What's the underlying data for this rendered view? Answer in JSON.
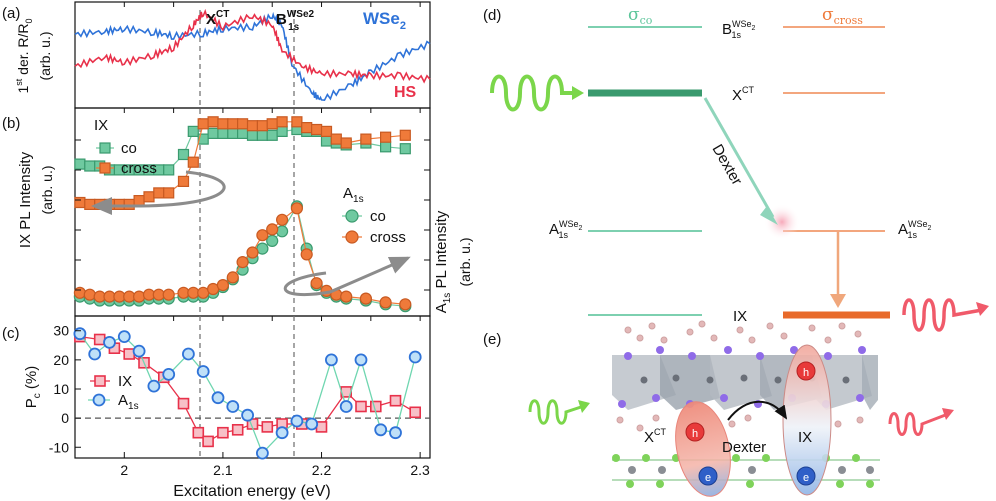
{
  "panels": {
    "a": {
      "label": "(a)",
      "ylabel_main": "1st der. R/R0",
      "ylabel_unit": "(arb. u.)",
      "annot_xct": "X",
      "annot_xct_sup": "CT",
      "annot_b": "B",
      "annot_b_sup": "WSe2",
      "annot_b_sub": "1s",
      "legend_wse2": "WSe2",
      "legend_hs": "HS"
    },
    "b": {
      "label": "(b)",
      "ylabel": "IX PL Intensity",
      "ylabel_unit": "(arb. u.)",
      "ix_title": "IX",
      "ix_co": "co",
      "ix_cross": "cross",
      "a1s_title": "A",
      "a1s_sub": "1s",
      "a1s_co": "co",
      "a1s_cross": "cross",
      "right_ylabel": "A1s PL Intensity",
      "right_ylabel_unit": "(arb. u.)"
    },
    "c": {
      "label": "(c)",
      "ylabel": "P",
      "ylabel_sub": "c",
      "ylabel_unit": "(%)",
      "legend_ix": "IX",
      "legend_a1s": "A",
      "legend_a1s_sub": "1s",
      "xlabel": "Excitation energy (eV)",
      "xticks": [
        "2",
        "2.1",
        "2.2",
        "2.3"
      ],
      "yticks": [
        "30",
        "20",
        "10",
        "0",
        "-10"
      ]
    },
    "d": {
      "label": "(d)",
      "sigma_co": "σ",
      "sigma_co_sub": "co",
      "sigma_cross": "σ",
      "sigma_cross_sub": "cross",
      "level_b": "B",
      "level_b_sup": "WSe",
      "level_b_sup2": "2",
      "level_b_sub": "1s",
      "level_xct": "X",
      "level_xct_sup": "CT",
      "level_a_left": "A",
      "level_a_sup": "WSe",
      "level_a_sup2": "2",
      "level_a_sub": "1s",
      "level_a_right": "A",
      "level_ix": "IX",
      "dexter": "Dexter"
    },
    "e": {
      "label": "(e)",
      "xct": "X",
      "xct_sup": "CT",
      "dexter": "Dexter",
      "ix": "IX",
      "h": "h",
      "e": "e"
    }
  },
  "colors": {
    "red": "#e8314a",
    "blue": "#2f73d8",
    "green": "#6fc9a0",
    "orange": "#ef7a3a",
    "teal": "#3a9a6e",
    "gray": "#8c8c8c"
  },
  "chart_data": [
    {
      "type": "line",
      "panel": "a",
      "x_range": [
        1.95,
        2.31
      ],
      "series": [
        {
          "name": "WSe2",
          "x": [
            1.95,
            1.98,
            2.0,
            2.03,
            2.05,
            2.08,
            2.1,
            2.13,
            2.15,
            2.16,
            2.17,
            2.19,
            2.2,
            2.23,
            2.25,
            2.28,
            2.31
          ],
          "y": [
            0.72,
            0.75,
            0.78,
            0.74,
            0.7,
            0.73,
            0.78,
            0.8,
            0.92,
            0.82,
            0.4,
            0.1,
            0.02,
            0.18,
            0.32,
            0.5,
            0.62
          ]
        },
        {
          "name": "HS",
          "x": [
            1.95,
            1.98,
            2.0,
            2.03,
            2.05,
            2.07,
            2.08,
            2.1,
            2.13,
            2.15,
            2.16,
            2.18,
            2.2,
            2.23,
            2.25,
            2.28,
            2.31
          ],
          "y": [
            0.38,
            0.48,
            0.42,
            0.5,
            0.58,
            0.82,
            0.95,
            0.8,
            0.92,
            0.82,
            0.55,
            0.38,
            0.3,
            0.3,
            0.28,
            0.28,
            0.24
          ]
        }
      ]
    },
    {
      "type": "scatter",
      "panel": "b",
      "x": [
        1.955,
        1.965,
        1.975,
        1.985,
        1.995,
        2.005,
        2.015,
        2.025,
        2.035,
        2.045,
        2.06,
        2.07,
        2.08,
        2.09,
        2.1,
        2.11,
        2.12,
        2.13,
        2.14,
        2.15,
        2.16,
        2.175,
        2.185,
        2.195,
        2.205,
        2.215,
        2.225,
        2.245,
        2.265,
        2.285
      ],
      "series": [
        {
          "name": "co",
          "group": "IX",
          "values": [
            0.77,
            0.76,
            0.76,
            0.74,
            0.74,
            0.74,
            0.74,
            0.74,
            0.74,
            0.74,
            0.82,
            0.94,
            0.9,
            0.93,
            0.93,
            0.93,
            0.93,
            0.92,
            0.92,
            0.92,
            0.94,
            0.95,
            0.94,
            0.94,
            0.89,
            0.88,
            0.87,
            0.88,
            0.86,
            0.85
          ]
        },
        {
          "name": "cross",
          "group": "IX",
          "values": [
            0.57,
            0.56,
            0.56,
            0.56,
            0.56,
            0.56,
            0.58,
            0.6,
            0.62,
            0.62,
            0.68,
            0.78,
            0.98,
            0.99,
            0.98,
            0.98,
            0.98,
            0.97,
            0.97,
            0.98,
            0.99,
            0.99,
            0.96,
            0.95,
            0.94,
            0.9,
            0.88,
            0.9,
            0.91,
            0.92
          ]
        },
        {
          "name": "co",
          "group": "A1s",
          "values": [
            0.08,
            0.07,
            0.06,
            0.06,
            0.06,
            0.06,
            0.06,
            0.07,
            0.07,
            0.07,
            0.08,
            0.08,
            0.08,
            0.1,
            0.13,
            0.17,
            0.22,
            0.28,
            0.33,
            0.37,
            0.42,
            0.55,
            0.33,
            0.14,
            0.1,
            0.08,
            0.07,
            0.06,
            0.04,
            0.03
          ]
        },
        {
          "name": "cross",
          "group": "A1s",
          "values": [
            0.1,
            0.09,
            0.08,
            0.08,
            0.08,
            0.08,
            0.08,
            0.09,
            0.09,
            0.09,
            0.1,
            0.1,
            0.1,
            0.12,
            0.14,
            0.18,
            0.26,
            0.31,
            0.4,
            0.43,
            0.48,
            0.54,
            0.3,
            0.15,
            0.11,
            0.09,
            0.08,
            0.07,
            0.05,
            0.04
          ]
        }
      ]
    },
    {
      "type": "line",
      "panel": "c",
      "xlabel": "Excitation energy (eV)",
      "xlim": [
        1.95,
        2.31
      ],
      "ylim": [
        -13,
        33
      ],
      "series": [
        {
          "name": "IX",
          "x": [
            1.955,
            1.975,
            1.99,
            2.005,
            2.02,
            2.04,
            2.06,
            2.075,
            2.085,
            2.1,
            2.115,
            2.13,
            2.145,
            2.16,
            2.18,
            2.2,
            2.225,
            2.24,
            2.255,
            2.275,
            2.295
          ],
          "y": [
            28,
            27,
            24,
            22,
            19,
            14,
            5,
            -5,
            -8,
            -5,
            -4,
            -2,
            -3,
            -2,
            -2,
            -3,
            9,
            4,
            4,
            6,
            2
          ]
        },
        {
          "name": "A1s",
          "x": [
            1.955,
            1.97,
            1.985,
            2.0,
            2.015,
            2.03,
            2.045,
            2.065,
            2.08,
            2.095,
            2.11,
            2.125,
            2.14,
            2.16,
            2.175,
            2.19,
            2.21,
            2.225,
            2.24,
            2.26,
            2.275,
            2.295
          ],
          "y": [
            29,
            22,
            26,
            28,
            23,
            11,
            15,
            22,
            16,
            7,
            4,
            1,
            -12,
            -5,
            -1,
            -2,
            20,
            4,
            20,
            -4,
            -5,
            21
          ]
        }
      ]
    }
  ]
}
